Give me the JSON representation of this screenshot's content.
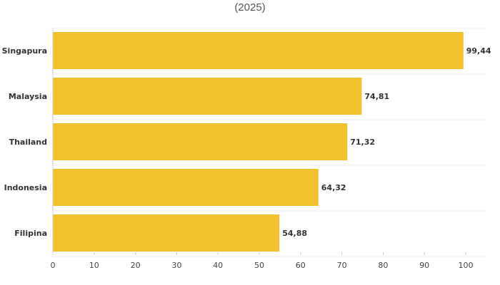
{
  "chart_data": {
    "type": "bar",
    "orientation": "horizontal",
    "title": "(2025)",
    "categories": [
      "Singapura",
      "Malaysia",
      "Thailand",
      "Indonesia",
      "Filipina"
    ],
    "values": [
      99.44,
      74.81,
      71.32,
      64.32,
      54.88
    ],
    "value_labels": [
      "99,44",
      "74,81",
      "71,32",
      "64,32",
      "54,88"
    ],
    "xlim": [
      0,
      100
    ],
    "x_ticks": [
      0,
      10,
      20,
      30,
      40,
      50,
      60,
      70,
      80,
      90,
      100
    ],
    "xlabel": "",
    "ylabel": "",
    "grid": true,
    "bar_color": "#f2c12e"
  }
}
